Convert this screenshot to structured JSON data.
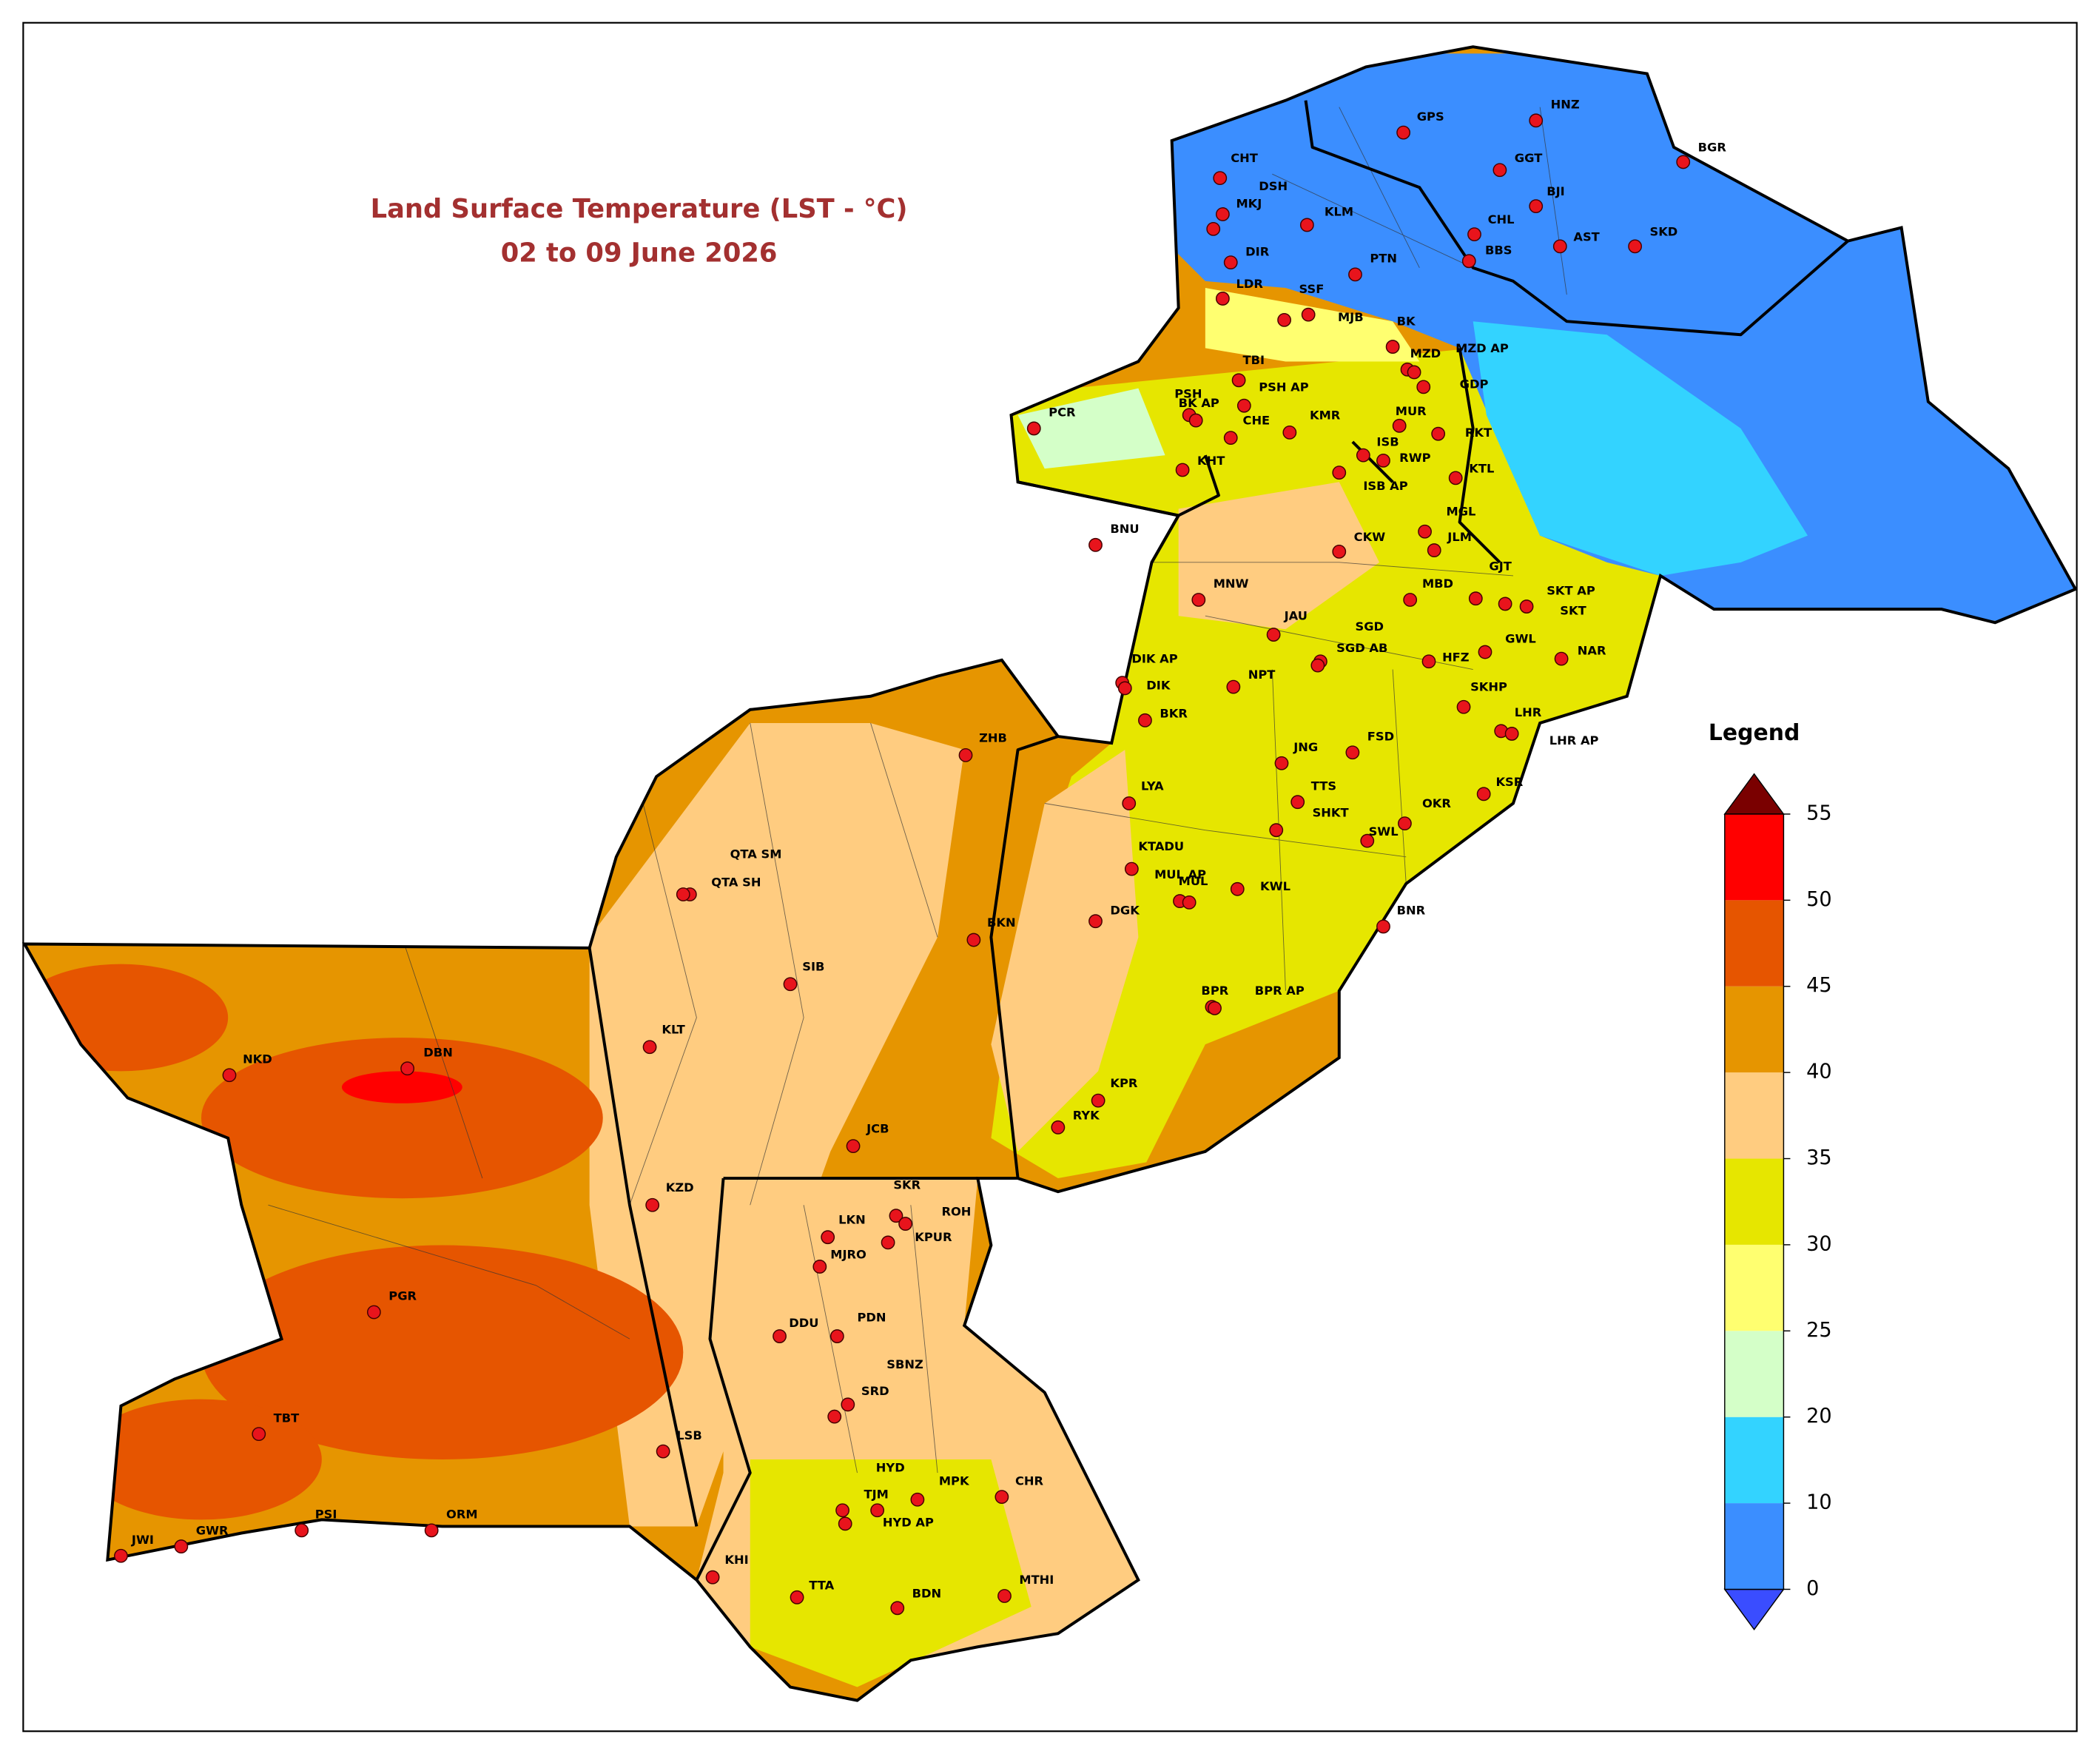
{
  "title": "Land Surface Temperature (LST - °C)",
  "subtitle": "02 to 09 June 2026",
  "legend": {
    "title": "Legend",
    "levels": [
      0,
      10,
      20,
      25,
      30,
      35,
      40,
      45,
      50,
      55
    ],
    "colors": [
      "#3a4dff",
      "#3b8eff",
      "#33d3ff",
      "#d4ffc8",
      "#ffff70",
      "#e6e600",
      "#ffcc80",
      "#e69500",
      "#e65500",
      "#ff0000",
      "#7a0000"
    ]
  },
  "stations": [
    "GPS",
    "HNZ",
    "BGR",
    "CHT",
    "DSH",
    "MKJ",
    "KLM",
    "GGT",
    "BJI",
    "CHL",
    "AST",
    "SKD",
    "BBS",
    "DIR",
    "PTN",
    "LDR",
    "SSF",
    "MJB",
    "BK",
    "MZD",
    "MZD AP",
    "TBI",
    "PSH AP",
    "PSH",
    "BK AP",
    "CHE",
    "KMR",
    "GDP",
    "MUR",
    "RKT",
    "RWP",
    "ISB",
    "ISB AP",
    "KTL",
    "KHT",
    "PCR",
    "BNU",
    "CKW",
    "MGL",
    "JLM",
    "MNW",
    "MBD",
    "GJT",
    "SKT AP",
    "SKT",
    "JAU",
    "SGD",
    "SGD AB",
    "GWL",
    "NAR",
    "HFZ",
    "DIK AP",
    "DIK",
    "NPT",
    "BKR",
    "SKHP",
    "LHR",
    "LHR AP",
    "ZHB",
    "JNG",
    "FSD",
    "TTS",
    "LYA",
    "KSR",
    "SHKT",
    "OKR",
    "SWL",
    "KTADU",
    "MUL AP",
    "MUL",
    "KWL",
    "QTA SM",
    "QTA SH",
    "DGK",
    "BNR",
    "BKN",
    "SIB",
    "BPR",
    "BPR AP",
    "KLT",
    "NKD",
    "DBN",
    "KPR",
    "RYK",
    "JCB",
    "KZD",
    "SKR",
    "ROH",
    "LKN",
    "KPUR",
    "MJRO",
    "PGR",
    "DDU",
    "PDN",
    "SBNZ",
    "SRD",
    "TBT",
    "LSB",
    "HYD",
    "MPK",
    "CHR",
    "TJM",
    "HYD AP",
    "JWI",
    "GWR",
    "PSI",
    "ORM",
    "KHI",
    "TTA",
    "BDN",
    "MTHI"
  ]
}
